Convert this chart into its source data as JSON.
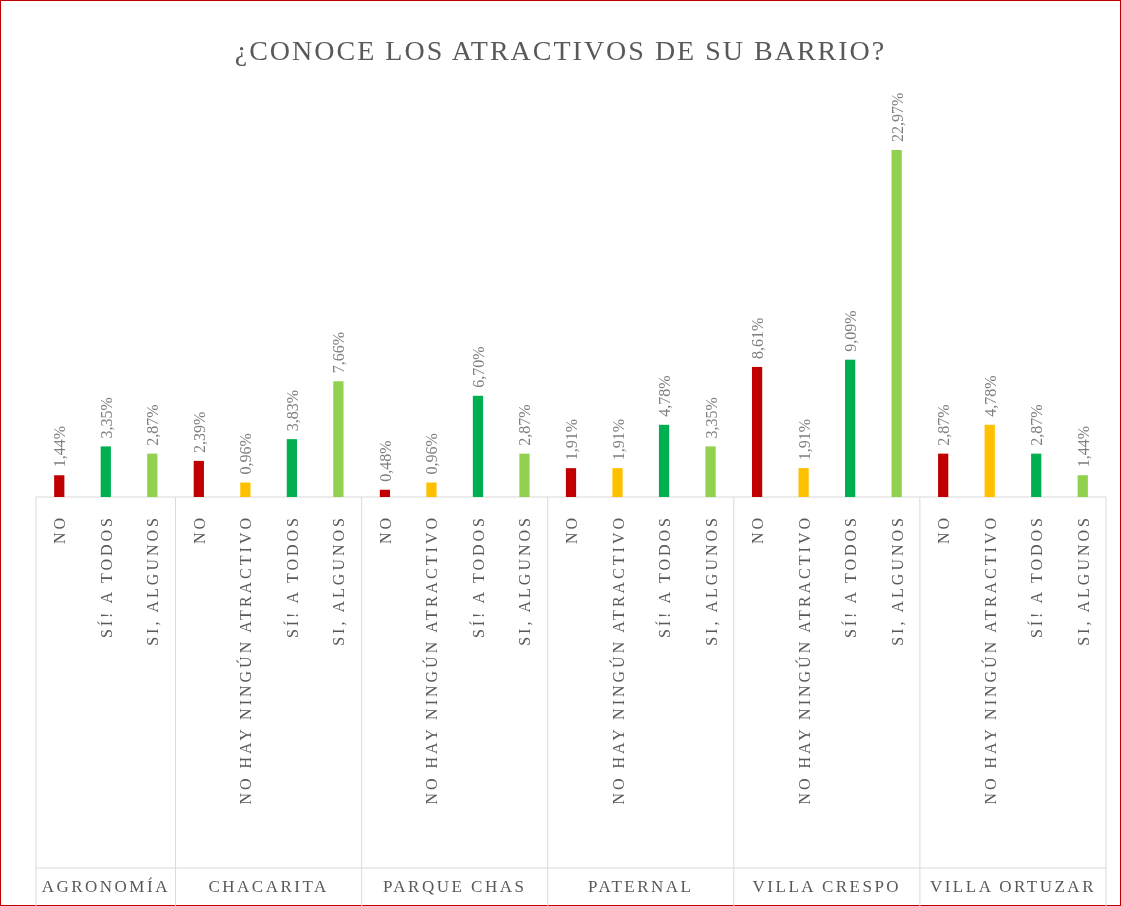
{
  "chart_data": {
    "type": "bar",
    "title": "¿CONOCE LOS ATRACTIVOS DE SU BARRIO?",
    "categories": [
      "NO",
      "SÍ! A TODOS",
      "SI, ALGUNOS",
      "NO",
      "NO HAY NINGÚN ATRACTIVO",
      "SÍ! A TODOS",
      "SI, ALGUNOS",
      "NO",
      "NO HAY NINGÚN ATRACTIVO",
      "SÍ! A TODOS",
      "SI, ALGUNOS",
      "NO",
      "NO HAY NINGÚN ATRACTIVO",
      "SÍ! A TODOS",
      "SI, ALGUNOS",
      "NO",
      "NO HAY NINGÚN ATRACTIVO",
      "SÍ! A TODOS",
      "SI, ALGUNOS",
      "NO",
      "NO HAY NINGÚN ATRACTIVO",
      "SÍ! A TODOS",
      "SI, ALGUNOS"
    ],
    "values": [
      1.44,
      3.35,
      2.87,
      2.39,
      0.96,
      3.83,
      7.66,
      0.48,
      0.96,
      6.7,
      2.87,
      1.91,
      1.91,
      4.78,
      3.35,
      8.61,
      1.91,
      9.09,
      22.97,
      2.87,
      4.78,
      2.87,
      1.44
    ],
    "value_labels": [
      "1,44%",
      "3,35%",
      "2,87%",
      "2,39%",
      "0,96%",
      "3,83%",
      "7,66%",
      "0,48%",
      "0,96%",
      "6,70%",
      "2,87%",
      "1,91%",
      "1,91%",
      "4,78%",
      "3,35%",
      "8,61%",
      "1,91%",
      "9,09%",
      "22,97%",
      "2,87%",
      "4,78%",
      "2,87%",
      "1,44%"
    ],
    "colors": [
      "#c00000",
      "#00b050",
      "#92d050",
      "#c00000",
      "#ffc000",
      "#00b050",
      "#92d050",
      "#c00000",
      "#ffc000",
      "#00b050",
      "#92d050",
      "#c00000",
      "#ffc000",
      "#00b050",
      "#92d050",
      "#c00000",
      "#ffc000",
      "#00b050",
      "#92d050",
      "#c00000",
      "#ffc000",
      "#00b050",
      "#92d050"
    ],
    "annotations": [
      "AGRONOMÍA",
      "CHACARITA",
      "PARQUE CHAS",
      "PATERNAL",
      "VILLA CRESPO",
      "VILLA ORTUZAR"
    ]
  }
}
